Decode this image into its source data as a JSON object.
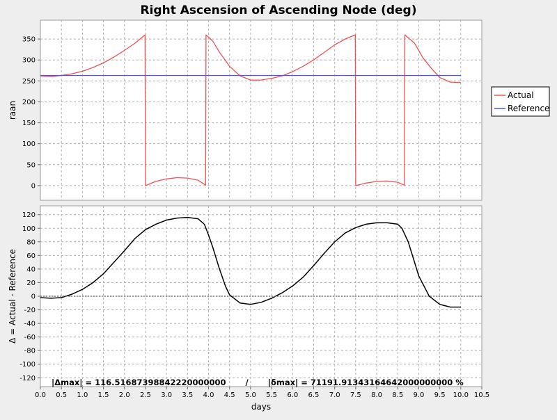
{
  "chart_data": {
    "type": "line",
    "title": "Right Ascension of Ascending Node (deg)",
    "xlabel": "days",
    "xlim": [
      0.0,
      10.5
    ],
    "x_ticks": [
      "0.0",
      "0.5",
      "1.0",
      "1.5",
      "2.0",
      "2.5",
      "3.0",
      "3.5",
      "4.0",
      "4.5",
      "5.0",
      "5.5",
      "6.0",
      "6.5",
      "7.0",
      "7.5",
      "8.0",
      "8.5",
      "9.0",
      "9.5",
      "10.0",
      "10.5"
    ],
    "grid": true,
    "legend": {
      "placement": "right",
      "entries": [
        "Actual",
        "Reference"
      ]
    },
    "colors": {
      "actual": "#f05050",
      "reference": "#5050f0",
      "delta": "#000000",
      "zero_line": "#606060"
    },
    "top_panel": {
      "ylabel": "raan",
      "ylim": [
        -35,
        395
      ],
      "y_ticks": [
        "0",
        "50",
        "100",
        "150",
        "200",
        "250",
        "300",
        "350"
      ],
      "series": [
        {
          "name": "Actual",
          "x": [
            0.0,
            0.25,
            0.5,
            0.75,
            1.0,
            1.25,
            1.5,
            1.75,
            2.0,
            2.25,
            2.49,
            2.5,
            2.75,
            3.0,
            3.25,
            3.5,
            3.75,
            3.93,
            3.94,
            4.1,
            4.25,
            4.5,
            4.75,
            5.0,
            5.25,
            5.5,
            5.75,
            6.0,
            6.25,
            6.5,
            6.75,
            7.0,
            7.25,
            7.49,
            7.5,
            7.75,
            8.0,
            8.25,
            8.5,
            8.66,
            8.67,
            8.9,
            9.1,
            9.3,
            9.5,
            9.75,
            10.0
          ],
          "y": [
            262,
            260,
            263,
            267,
            273,
            282,
            293,
            307,
            323,
            340,
            360,
            0,
            10,
            16,
            19,
            18,
            13,
            1,
            360,
            345,
            320,
            285,
            262,
            252,
            252,
            256,
            262,
            272,
            285,
            300,
            318,
            336,
            350,
            360,
            0,
            6,
            10,
            11,
            8,
            1,
            360,
            340,
            305,
            280,
            258,
            247,
            246
          ]
        },
        {
          "name": "Reference",
          "x": [
            0.0,
            10.0
          ],
          "y": [
            263,
            263
          ]
        }
      ]
    },
    "bottom_panel": {
      "ylabel": "Δ = Actual - Reference",
      "ylim": [
        -133,
        133
      ],
      "y_ticks": [
        "120",
        "100",
        "80",
        "60",
        "40",
        "20",
        "0",
        "-20",
        "-40",
        "-60",
        "-80",
        "-100",
        "-120"
      ],
      "annotation": "|Δmax| = 116.51687398842220000000       /       |δmax| = 71191.91343164642000000000 %",
      "series": [
        {
          "name": "Δ",
          "x": [
            0.0,
            0.25,
            0.5,
            0.75,
            1.0,
            1.25,
            1.5,
            1.75,
            2.0,
            2.25,
            2.5,
            2.75,
            3.0,
            3.25,
            3.5,
            3.75,
            3.9,
            4.0,
            4.1,
            4.25,
            4.4,
            4.5,
            4.75,
            5.0,
            5.25,
            5.5,
            5.75,
            6.0,
            6.25,
            6.5,
            6.75,
            7.0,
            7.25,
            7.5,
            7.75,
            8.0,
            8.25,
            8.5,
            8.6,
            8.75,
            8.9,
            9.0,
            9.25,
            9.5,
            9.75,
            10.0
          ],
          "y": [
            -2,
            -3,
            -2,
            3,
            10,
            20,
            33,
            50,
            67,
            85,
            98,
            106,
            112,
            115,
            116,
            114,
            106,
            90,
            72,
            42,
            15,
            2,
            -10,
            -12,
            -9,
            -3,
            5,
            15,
            28,
            45,
            63,
            80,
            93,
            101,
            106,
            108,
            108,
            106,
            100,
            80,
            50,
            30,
            0,
            -12,
            -16,
            -16
          ]
        },
        {
          "name": "zero",
          "x": [
            0.0,
            10.5
          ],
          "y": [
            0,
            0
          ]
        }
      ]
    }
  }
}
